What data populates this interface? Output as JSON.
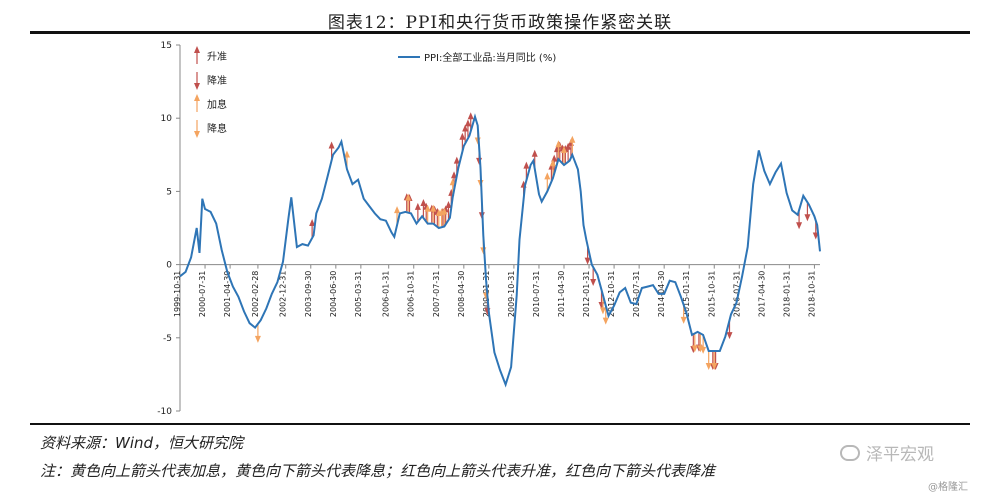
{
  "title": "图表12：PPI和央行货币政策操作紧密关联",
  "source": "资料来源：Wind，恒大研究院",
  "note": "注：黄色向上箭头代表加息，黄色向下箭头代表降息；红色向上箭头代表升准，红色向下箭头代表降准",
  "watermark": "泽平宏观",
  "watermark_credit": "@格隆汇",
  "colors": {
    "line": "#2e75b6",
    "rrr": "#c0504d",
    "rate": "#f4a460"
  },
  "chart_data": {
    "type": "line",
    "title": "",
    "xlabel": "",
    "ylabel": "",
    "ylim": [
      -10,
      15
    ],
    "yticks": [
      15,
      10,
      5,
      0,
      -5,
      -10
    ],
    "grid": false,
    "legend_position": "top-center",
    "series": [
      {
        "name": "PPI:全部工业品:当月同比 (%)",
        "points": [
          [
            "1999-10",
            -0.8
          ],
          [
            "1999-12",
            -0.5
          ],
          [
            "2000-02",
            0.5
          ],
          [
            "2000-04",
            2.5
          ],
          [
            "2000-05",
            0.8
          ],
          [
            "2000-06",
            4.5
          ],
          [
            "2000-07",
            3.8
          ],
          [
            "2000-09",
            3.6
          ],
          [
            "2000-11",
            2.8
          ],
          [
            "2001-01",
            1.0
          ],
          [
            "2001-03",
            -0.5
          ],
          [
            "2001-05",
            -1.5
          ],
          [
            "2001-07",
            -2.2
          ],
          [
            "2001-09",
            -3.2
          ],
          [
            "2001-11",
            -4.0
          ],
          [
            "2002-01",
            -4.3
          ],
          [
            "2002-03",
            -3.8
          ],
          [
            "2002-05",
            -3.0
          ],
          [
            "2002-07",
            -2.0
          ],
          [
            "2002-09",
            -1.2
          ],
          [
            "2002-11",
            0.2
          ],
          [
            "2003-01",
            3.2
          ],
          [
            "2003-02",
            4.6
          ],
          [
            "2003-04",
            1.2
          ],
          [
            "2003-06",
            1.4
          ],
          [
            "2003-08",
            1.3
          ],
          [
            "2003-10",
            2.0
          ],
          [
            "2003-11",
            3.5
          ],
          [
            "2004-01",
            4.5
          ],
          [
            "2004-03",
            6.0
          ],
          [
            "2004-05",
            7.5
          ],
          [
            "2004-07",
            8.0
          ],
          [
            "2004-08",
            8.4
          ],
          [
            "2004-10",
            6.5
          ],
          [
            "2004-12",
            5.5
          ],
          [
            "2005-02",
            5.8
          ],
          [
            "2005-04",
            4.5
          ],
          [
            "2005-06",
            4.0
          ],
          [
            "2005-08",
            3.5
          ],
          [
            "2005-10",
            3.1
          ],
          [
            "2005-12",
            3.0
          ],
          [
            "2006-02",
            2.2
          ],
          [
            "2006-03",
            1.9
          ],
          [
            "2006-05",
            3.5
          ],
          [
            "2006-07",
            3.6
          ],
          [
            "2006-09",
            3.5
          ],
          [
            "2006-11",
            2.8
          ],
          [
            "2007-01",
            3.3
          ],
          [
            "2007-03",
            2.8
          ],
          [
            "2007-05",
            2.8
          ],
          [
            "2007-07",
            2.5
          ],
          [
            "2007-09",
            2.6
          ],
          [
            "2007-11",
            3.2
          ],
          [
            "2007-12",
            4.6
          ],
          [
            "2008-02",
            6.6
          ],
          [
            "2008-04",
            8.1
          ],
          [
            "2008-06",
            8.8
          ],
          [
            "2008-08",
            10.1
          ],
          [
            "2008-09",
            9.5
          ],
          [
            "2008-10",
            6.6
          ],
          [
            "2008-11",
            2.0
          ],
          [
            "2008-12",
            -1.1
          ],
          [
            "2009-01",
            -3.3
          ],
          [
            "2009-03",
            -6.0
          ],
          [
            "2009-05",
            -7.2
          ],
          [
            "2009-07",
            -8.2
          ],
          [
            "2009-09",
            -7.0
          ],
          [
            "2009-11",
            -2.1
          ],
          [
            "2009-12",
            1.7
          ],
          [
            "2010-02",
            5.4
          ],
          [
            "2010-04",
            6.8
          ],
          [
            "2010-05",
            7.1
          ],
          [
            "2010-07",
            4.8
          ],
          [
            "2010-08",
            4.3
          ],
          [
            "2010-10",
            5.0
          ],
          [
            "2010-12",
            5.9
          ],
          [
            "2011-02",
            7.2
          ],
          [
            "2011-04",
            6.8
          ],
          [
            "2011-06",
            7.1
          ],
          [
            "2011-07",
            7.5
          ],
          [
            "2011-09",
            6.5
          ],
          [
            "2011-10",
            5.0
          ],
          [
            "2011-11",
            2.7
          ],
          [
            "2011-12",
            1.7
          ],
          [
            "2012-02",
            0.0
          ],
          [
            "2012-04",
            -0.7
          ],
          [
            "2012-06",
            -2.1
          ],
          [
            "2012-08",
            -3.5
          ],
          [
            "2012-10",
            -2.8
          ],
          [
            "2012-12",
            -1.9
          ],
          [
            "2013-02",
            -1.6
          ],
          [
            "2013-04",
            -2.6
          ],
          [
            "2013-06",
            -2.7
          ],
          [
            "2013-08",
            -1.6
          ],
          [
            "2013-10",
            -1.5
          ],
          [
            "2013-12",
            -1.4
          ],
          [
            "2014-02",
            -2.0
          ],
          [
            "2014-04",
            -2.0
          ],
          [
            "2014-06",
            -1.1
          ],
          [
            "2014-08",
            -1.2
          ],
          [
            "2014-10",
            -2.2
          ],
          [
            "2014-12",
            -3.3
          ],
          [
            "2015-02",
            -4.8
          ],
          [
            "2015-04",
            -4.6
          ],
          [
            "2015-06",
            -4.8
          ],
          [
            "2015-08",
            -5.9
          ],
          [
            "2015-10",
            -5.9
          ],
          [
            "2015-12",
            -5.9
          ],
          [
            "2016-02",
            -4.9
          ],
          [
            "2016-04",
            -3.4
          ],
          [
            "2016-06",
            -2.6
          ],
          [
            "2016-08",
            -0.8
          ],
          [
            "2016-10",
            1.2
          ],
          [
            "2016-12",
            5.5
          ],
          [
            "2017-02",
            7.8
          ],
          [
            "2017-04",
            6.4
          ],
          [
            "2017-06",
            5.5
          ],
          [
            "2017-08",
            6.3
          ],
          [
            "2017-10",
            6.9
          ],
          [
            "2017-12",
            4.9
          ],
          [
            "2018-02",
            3.7
          ],
          [
            "2018-04",
            3.4
          ],
          [
            "2018-06",
            4.7
          ],
          [
            "2018-08",
            4.1
          ],
          [
            "2018-10",
            3.3
          ],
          [
            "2018-11",
            2.7
          ],
          [
            "2018-12",
            0.9
          ]
        ]
      }
    ],
    "xticks": [
      "1999-10-31",
      "2000-07-31",
      "2001-04-30",
      "2002-02-28",
      "2002-12-31",
      "2003-09-30",
      "2004-06-30",
      "2005-03-31",
      "2006-01-31",
      "2006-10-31",
      "2007-07-31",
      "2008-04-30",
      "2009-01-31",
      "2009-10-31",
      "2010-07-31",
      "2011-04-30",
      "2012-01-31",
      "2012-10-31",
      "2013-07-31",
      "2014-04-30",
      "2015-01-31",
      "2015-10-31",
      "2016-07-31",
      "2017-04-30",
      "2018-01-31",
      "2018-10-31"
    ],
    "markers": {
      "legend": [
        {
          "label": "升准",
          "kind": "rrr_up"
        },
        {
          "label": "降准",
          "kind": "rrr_down"
        },
        {
          "label": "加息",
          "kind": "rate_up"
        },
        {
          "label": "降息",
          "kind": "rate_down"
        }
      ],
      "rrr_up": [
        "2003-09",
        "2004-04",
        "2006-07",
        "2006-08",
        "2006-11",
        "2007-01",
        "2007-02",
        "2007-04",
        "2007-05",
        "2007-06",
        "2007-08",
        "2007-09",
        "2007-10",
        "2007-11",
        "2007-12",
        "2008-01",
        "2008-03",
        "2008-04",
        "2008-05",
        "2008-06",
        "2010-01",
        "2010-02",
        "2010-05",
        "2010-11",
        "2010-12",
        "2011-01",
        "2011-02",
        "2011-03",
        "2011-04",
        "2011-05",
        "2011-06"
      ],
      "rrr_down": [
        "2008-09",
        "2008-10",
        "2008-12",
        "2011-12",
        "2012-02",
        "2012-05",
        "2015-02",
        "2015-04",
        "2015-09",
        "2015-10",
        "2016-03",
        "2018-04",
        "2018-07",
        "2018-10"
      ],
      "rate_up": [
        "2004-10",
        "2006-04",
        "2006-08",
        "2007-03",
        "2007-05",
        "2007-07",
        "2007-08",
        "2007-09",
        "2007-12",
        "2010-10",
        "2010-12",
        "2011-02",
        "2011-04",
        "2011-07"
      ],
      "rate_down": [
        "2002-02",
        "2008-09",
        "2008-10",
        "2008-11",
        "2008-12",
        "2012-06",
        "2012-07",
        "2014-11",
        "2015-03",
        "2015-05",
        "2015-06",
        "2015-08",
        "2015-10"
      ]
    }
  }
}
